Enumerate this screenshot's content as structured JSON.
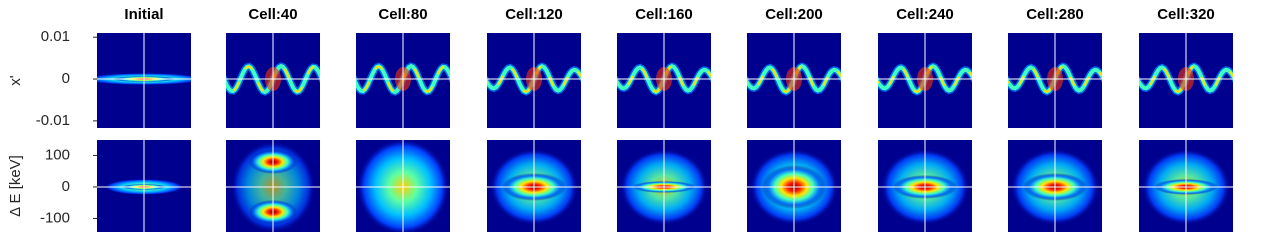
{
  "chart_data": {
    "type": "heatmap-grid",
    "titles": [
      "Initial",
      "Cell:40",
      "Cell:80",
      "Cell:120",
      "Cell:160",
      "Cell:200",
      "Cell:240",
      "Cell:280",
      "Cell:320"
    ],
    "rows": [
      {
        "ylabel": "x'",
        "ylim": [
          -0.0117,
          0.011
        ],
        "yticks": [
          0.01,
          0,
          -0.01
        ]
      },
      {
        "ylabel": "Δ E [keV]",
        "ylim": [
          -143,
          149
        ],
        "yticks": [
          100,
          0,
          -100
        ]
      }
    ]
  }
}
